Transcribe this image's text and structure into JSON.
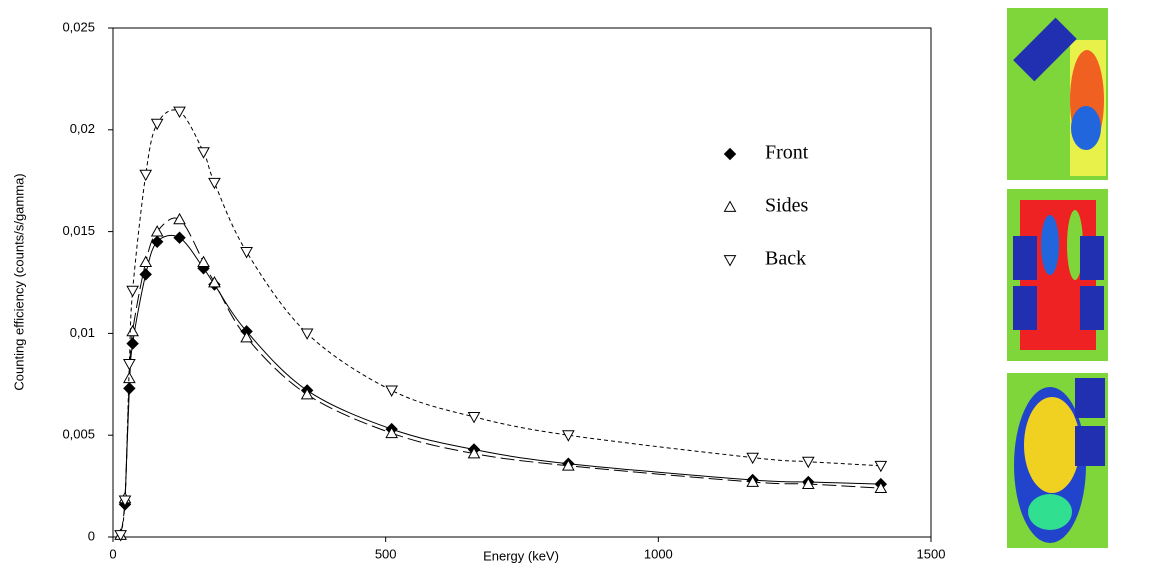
{
  "chart_data": {
    "type": "scatter",
    "x_label": "Energy (keV)",
    "y_label": "Counting efficiency (counts/s/gamma)",
    "x": [
      14,
      22,
      30,
      36,
      60,
      81,
      122,
      166,
      186,
      245,
      356,
      511,
      662,
      835,
      1173,
      1275,
      1408
    ],
    "series": [
      {
        "name": "Front",
        "color": "#000000",
        "marker": "diamond",
        "line_style": "solid",
        "values": [
          null,
          0.0016,
          0.0073,
          0.0095,
          0.0129,
          0.0145,
          0.0147,
          0.0132,
          0.0124,
          0.0101,
          0.0072,
          0.0053,
          0.0043,
          0.0036,
          0.0028,
          0.0027,
          0.0026
        ]
      },
      {
        "name": "Sides",
        "color": "#000000",
        "marker": "triangle-up",
        "line_style": "long-dash",
        "values": [
          0.0001,
          0.0019,
          0.0078,
          0.0101,
          0.0135,
          0.015,
          0.0156,
          0.0135,
          0.0125,
          0.0098,
          0.007,
          0.0051,
          0.0041,
          0.0035,
          0.0027,
          0.0026,
          0.0024
        ]
      },
      {
        "name": "Back",
        "color": "#000000",
        "marker": "triangle-down",
        "line_style": "short-dash",
        "values": [
          0.0001,
          0.0018,
          0.0085,
          0.0121,
          0.0178,
          0.0203,
          0.0209,
          0.0189,
          0.0174,
          0.014,
          0.01,
          0.0072,
          0.0059,
          0.005,
          0.0039,
          0.0037,
          0.0035
        ]
      }
    ],
    "xlim": [
      0,
      1500
    ],
    "xticks": [
      0,
      500,
      1000,
      1500
    ],
    "ylim": [
      0,
      0.025
    ],
    "yticks": [
      0,
      {
        "value": 0.005,
        "label": "0,005"
      },
      {
        "value": 0.01,
        "label": "0,01"
      },
      {
        "value": 0.015,
        "label": "0,015"
      },
      {
        "value": 0.02,
        "label": "0,02"
      },
      {
        "value": 0.025,
        "label": "0,025"
      }
    ],
    "grid": false
  }
}
